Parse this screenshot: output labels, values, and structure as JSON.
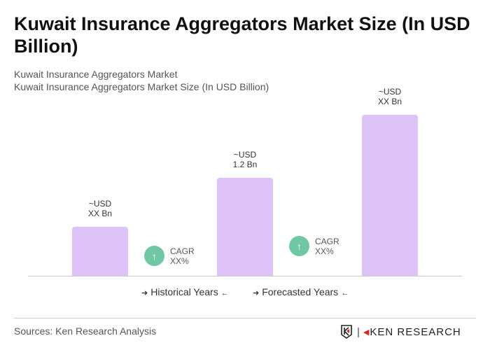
{
  "title": "Kuwait Insurance Aggregators Market Size (In USD Billion)",
  "subtitle1": "Kuwait Insurance Aggregators Market",
  "subtitle2": "Kuwait Insurance Aggregators Market Size (In USD Billion)",
  "chart_data": {
    "type": "bar",
    "categories": [
      "",
      "",
      ""
    ],
    "values": [
      0.6,
      1.2,
      1.97
    ],
    "data_labels": [
      [
        "~USD",
        "XX Bn"
      ],
      [
        "~USD",
        "1.2 Bn"
      ],
      [
        "~USD",
        "XX Bn"
      ]
    ],
    "bar_color": "#dcc2f6",
    "cagr": [
      {
        "label": "CAGR",
        "value": "XX%"
      },
      {
        "label": "CAGR",
        "value": "XX%"
      }
    ],
    "cagr_color": "#6fc8a3",
    "legend": [
      "Historical Years",
      "Forecasted Years"
    ]
  },
  "footer": {
    "sources": "Sources: Ken Research Analysis",
    "logo": "KEN RESEARCH"
  }
}
